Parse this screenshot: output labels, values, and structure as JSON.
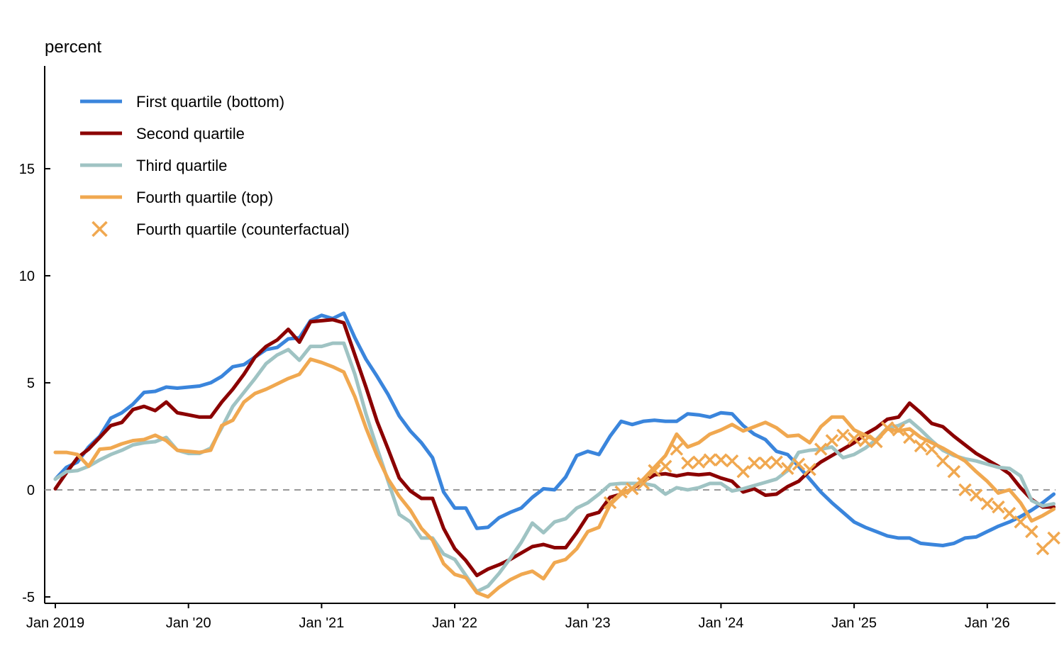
{
  "chart_data": {
    "type": "line",
    "ylabel": "percent",
    "xlabel": "",
    "title": "",
    "ylim": [
      -5.3,
      19.8
    ],
    "yticks": [
      -5,
      0,
      5,
      10,
      15
    ],
    "ytick_labels": [
      "-5",
      "0",
      "5",
      "10",
      "15"
    ],
    "x_start": "2019-01",
    "x_end": "2026-06",
    "xticks": [
      "2019-01",
      "2020-01",
      "2021-01",
      "2022-01",
      "2023-01",
      "2024-01",
      "2025-01",
      "2026-01"
    ],
    "xtick_labels": [
      "Jan 2019",
      "Jan '20",
      "Jan '21",
      "Jan '22",
      "Jan '23",
      "Jan '24",
      "Jan '25",
      "Jan '26"
    ],
    "zero_line": true,
    "grid": false,
    "legend_position": "top-left",
    "series": [
      {
        "name": "First quartile (bottom)",
        "kind": "line",
        "color": "#3a85dc",
        "start": "2019-01",
        "values": [
          0.5,
          1.05,
          1.3,
          2.0,
          2.5,
          3.35,
          3.6,
          4.0,
          4.55,
          4.6,
          4.8,
          4.75,
          4.8,
          4.85,
          5.0,
          5.3,
          5.75,
          5.85,
          6.2,
          6.55,
          6.65,
          7.05,
          7.1,
          7.9,
          8.15,
          8.0,
          8.25,
          7.1,
          6.1,
          5.3,
          4.45,
          3.45,
          2.75,
          2.2,
          1.5,
          -0.1,
          -0.85,
          -0.85,
          -1.8,
          -1.75,
          -1.3,
          -1.05,
          -0.85,
          -0.35,
          0.05,
          0.0,
          0.6,
          1.6,
          1.8,
          1.65,
          2.5,
          3.2,
          3.05,
          3.2,
          3.25,
          3.2,
          3.2,
          3.55,
          3.5,
          3.4,
          3.6,
          3.55,
          3.0,
          2.6,
          2.35,
          1.8,
          1.65,
          1.1,
          0.5,
          -0.1,
          -0.6,
          -1.05,
          -1.5,
          -1.75,
          -1.95,
          -2.15,
          -2.25,
          -2.25,
          -2.5,
          -2.55,
          -2.6,
          -2.5,
          -2.25,
          -2.2,
          -1.95,
          -1.7,
          -1.5,
          -1.25,
          -0.95,
          -0.6,
          -0.2
        ]
      },
      {
        "name": "Second quartile",
        "kind": "line",
        "color": "#8b0000",
        "start": "2019-01",
        "values": [
          0.05,
          0.8,
          1.5,
          1.9,
          2.45,
          3.0,
          3.15,
          3.75,
          3.9,
          3.7,
          4.1,
          3.6,
          3.5,
          3.4,
          3.4,
          4.1,
          4.7,
          5.4,
          6.2,
          6.7,
          7.0,
          7.5,
          6.9,
          7.85,
          7.9,
          7.95,
          7.8,
          6.3,
          4.8,
          3.2,
          1.9,
          0.55,
          -0.05,
          -0.4,
          -0.4,
          -1.8,
          -2.75,
          -3.3,
          -4.0,
          -3.7,
          -3.5,
          -3.25,
          -2.95,
          -2.65,
          -2.55,
          -2.7,
          -2.7,
          -2.0,
          -1.2,
          -1.05,
          -0.35,
          -0.2,
          0.05,
          0.4,
          0.7,
          0.75,
          0.65,
          0.75,
          0.7,
          0.75,
          0.55,
          0.4,
          -0.1,
          0.05,
          -0.25,
          -0.2,
          0.15,
          0.4,
          0.9,
          1.3,
          1.6,
          1.9,
          2.2,
          2.6,
          2.9,
          3.3,
          3.4,
          4.05,
          3.6,
          3.1,
          2.95,
          2.5,
          2.1,
          1.7,
          1.4,
          1.1,
          0.75,
          0.1,
          -0.45,
          -0.8,
          -0.8
        ]
      },
      {
        "name": "Third quartile",
        "kind": "line",
        "color": "#9fc3c3",
        "start": "2019-01",
        "values": [
          0.5,
          0.85,
          0.9,
          1.1,
          1.4,
          1.65,
          1.85,
          2.1,
          2.2,
          2.25,
          2.45,
          1.85,
          1.7,
          1.7,
          1.95,
          2.9,
          3.9,
          4.55,
          5.2,
          5.9,
          6.3,
          6.55,
          6.05,
          6.7,
          6.7,
          6.85,
          6.85,
          5.4,
          3.55,
          1.95,
          0.4,
          -1.15,
          -1.5,
          -2.25,
          -2.25,
          -3.0,
          -3.25,
          -4.0,
          -4.75,
          -4.5,
          -3.9,
          -3.2,
          -2.45,
          -1.55,
          -2.0,
          -1.5,
          -1.35,
          -0.85,
          -0.6,
          -0.2,
          0.25,
          0.3,
          0.3,
          0.3,
          0.2,
          -0.2,
          0.1,
          0.0,
          0.1,
          0.3,
          0.3,
          -0.05,
          0.05,
          0.2,
          0.35,
          0.5,
          0.9,
          1.75,
          1.85,
          1.9,
          2.0,
          1.5,
          1.65,
          1.95,
          2.35,
          2.9,
          3.0,
          3.25,
          2.8,
          2.3,
          1.85,
          1.6,
          1.45,
          1.35,
          1.2,
          1.05,
          1.0,
          0.65,
          -0.5,
          -0.75,
          -0.65
        ]
      },
      {
        "name": "Fourth quartile (top)",
        "kind": "line",
        "color": "#f0a850",
        "start": "2019-01",
        "values": [
          1.75,
          1.75,
          1.65,
          1.1,
          1.9,
          1.95,
          2.15,
          2.3,
          2.35,
          2.55,
          2.3,
          1.85,
          1.8,
          1.75,
          1.85,
          3.0,
          3.25,
          4.1,
          4.5,
          4.7,
          4.95,
          5.2,
          5.4,
          6.1,
          5.95,
          5.75,
          5.5,
          4.35,
          2.9,
          1.6,
          0.5,
          -0.3,
          -0.95,
          -1.8,
          -2.35,
          -3.45,
          -3.95,
          -4.1,
          -4.8,
          -5.0,
          -4.55,
          -4.2,
          -3.95,
          -3.8,
          -4.15,
          -3.4,
          -3.25,
          -2.75,
          -1.95,
          -1.75,
          -0.7,
          -0.2,
          0.05,
          0.5,
          1.05,
          1.6,
          2.6,
          2.0,
          2.2,
          2.6,
          2.8,
          3.05,
          2.75,
          2.95,
          3.15,
          2.9,
          2.5,
          2.55,
          2.2,
          2.95,
          3.4,
          3.4,
          2.8,
          2.55,
          2.3,
          2.85,
          2.75,
          2.85,
          2.45,
          2.2,
          1.95,
          1.65,
          1.35,
          0.85,
          0.4,
          -0.15,
          0.0,
          -0.6,
          -1.45,
          -1.2,
          -0.9
        ]
      },
      {
        "name": "Fourth quartile (counterfactual)",
        "kind": "marker",
        "color": "#f0a850",
        "start": "2023-03",
        "values": [
          -0.6,
          -0.1,
          0.05,
          0.3,
          0.9,
          1.1,
          1.9,
          1.25,
          1.3,
          1.4,
          1.4,
          1.35,
          0.85,
          1.25,
          1.25,
          1.3,
          1.0,
          1.2,
          0.95,
          1.9,
          2.3,
          2.55,
          2.4,
          2.3,
          2.25,
          2.9,
          2.8,
          2.45,
          2.05,
          1.9,
          1.35,
          0.85,
          0.0,
          -0.25,
          -0.65,
          -0.8,
          -1.1,
          -1.5,
          -1.95,
          -2.75,
          -2.25
        ]
      }
    ]
  }
}
